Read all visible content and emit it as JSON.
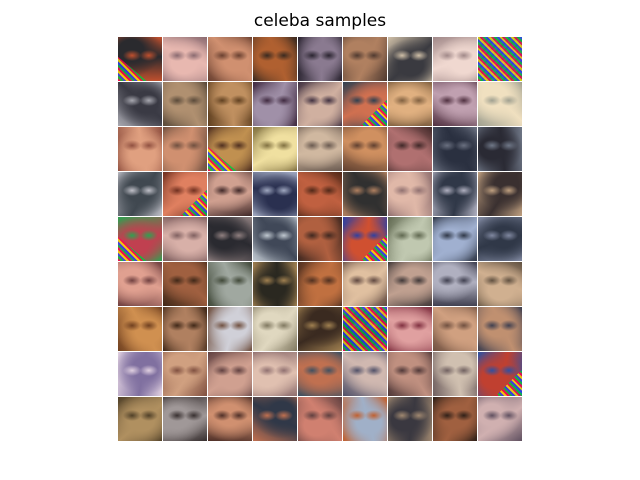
{
  "figure": {
    "title": "celeba samples"
  },
  "grid": {
    "rows": 9,
    "cols": 9,
    "tiles": [
      {
        "c1": "#2a2a2e",
        "c2": "#c0502e",
        "noise": "bl"
      },
      {
        "c1": "#e8b8b0",
        "c2": "#8a6a70",
        "noise": ""
      },
      {
        "c1": "#d09070",
        "c2": "#6a4030",
        "noise": ""
      },
      {
        "c1": "#b06030",
        "c2": "#3a2a20",
        "noise": ""
      },
      {
        "c1": "#8a7a90",
        "c2": "#2a2430",
        "noise": ""
      },
      {
        "c1": "#b08060",
        "c2": "#503a30",
        "noise": ""
      },
      {
        "c1": "#3a3a40",
        "c2": "#d0c0a8",
        "noise": ""
      },
      {
        "c1": "#f0d8d0",
        "c2": "#a08888",
        "noise": ""
      },
      {
        "c1": "#8040a0",
        "c2": "#30a050",
        "noise": "full"
      },
      {
        "c1": "#3a3a44",
        "c2": "#a8a8b0",
        "noise": ""
      },
      {
        "c1": "#b09070",
        "c2": "#5a4a3a",
        "noise": ""
      },
      {
        "c1": "#c09060",
        "c2": "#604020",
        "noise": ""
      },
      {
        "c1": "#a090a8",
        "c2": "#402a40",
        "noise": ""
      },
      {
        "c1": "#d0b0a0",
        "c2": "#403040",
        "noise": ""
      },
      {
        "c1": "#d07050",
        "c2": "#304050",
        "noise": "corner"
      },
      {
        "c1": "#e0b080",
        "c2": "#806040",
        "noise": ""
      },
      {
        "c1": "#c0a0b0",
        "c2": "#503040",
        "noise": ""
      },
      {
        "c1": "#f0e0c0",
        "c2": "#a0a090",
        "noise": ""
      },
      {
        "c1": "#e0a080",
        "c2": "#905040",
        "noise": ""
      },
      {
        "c1": "#d09070",
        "c2": "#705040",
        "noise": ""
      },
      {
        "c1": "#c09050",
        "c2": "#503020",
        "noise": "bl"
      },
      {
        "c1": "#f0e0a0",
        "c2": "#807040",
        "noise": ""
      },
      {
        "c1": "#d0b8a0",
        "c2": "#6a5a50",
        "noise": ""
      },
      {
        "c1": "#d09060",
        "c2": "#604030",
        "noise": ""
      },
      {
        "c1": "#b07070",
        "c2": "#402828",
        "noise": ""
      },
      {
        "c1": "#2a3040",
        "c2": "#6a7080",
        "noise": ""
      },
      {
        "c1": "#2a2a34",
        "c2": "#707888",
        "noise": ""
      },
      {
        "c1": "#404850",
        "c2": "#c0c0c8",
        "noise": ""
      },
      {
        "c1": "#e08060",
        "c2": "#703020",
        "noise": "corner"
      },
      {
        "c1": "#d0a090",
        "c2": "#402828",
        "noise": ""
      },
      {
        "c1": "#2a3050",
        "c2": "#a0a8c0",
        "noise": ""
      },
      {
        "c1": "#c06040",
        "c2": "#502818",
        "noise": ""
      },
      {
        "c1": "#303030",
        "c2": "#b08060",
        "noise": ""
      },
      {
        "c1": "#e0b8a8",
        "c2": "#907070",
        "noise": ""
      },
      {
        "c1": "#303848",
        "c2": "#b0b0c0",
        "noise": ""
      },
      {
        "c1": "#3a3030",
        "c2": "#c0a080",
        "noise": ""
      },
      {
        "c1": "#c04050",
        "c2": "#30a050",
        "noise": "bl"
      },
      {
        "c1": "#d8b0a8",
        "c2": "#806060",
        "noise": ""
      },
      {
        "c1": "#2a2a30",
        "c2": "#908080",
        "noise": ""
      },
      {
        "c1": "#404858",
        "c2": "#c0c8d0",
        "noise": ""
      },
      {
        "c1": "#b06040",
        "c2": "#402820",
        "noise": ""
      },
      {
        "c1": "#d05030",
        "c2": "#3040a0",
        "noise": "corner"
      },
      {
        "c1": "#c0c8b0",
        "c2": "#606850",
        "noise": ""
      },
      {
        "c1": "#a0b0d0",
        "c2": "#303848",
        "noise": ""
      },
      {
        "c1": "#303848",
        "c2": "#8088a0",
        "noise": ""
      },
      {
        "c1": "#e0a090",
        "c2": "#704040",
        "noise": ""
      },
      {
        "c1": "#a06040",
        "c2": "#402818",
        "noise": ""
      },
      {
        "c1": "#a0a8a0",
        "c2": "#404838",
        "noise": ""
      },
      {
        "c1": "#2a2820",
        "c2": "#a08050",
        "noise": ""
      },
      {
        "c1": "#c07040",
        "c2": "#503020",
        "noise": ""
      },
      {
        "c1": "#e0c0a0",
        "c2": "#604840",
        "noise": ""
      },
      {
        "c1": "#c0a090",
        "c2": "#403838",
        "noise": ""
      },
      {
        "c1": "#b0b0c0",
        "c2": "#404050",
        "noise": ""
      },
      {
        "c1": "#d0b090",
        "c2": "#605040",
        "noise": ""
      },
      {
        "c1": "#d09050",
        "c2": "#704020",
        "noise": ""
      },
      {
        "c1": "#b08060",
        "c2": "#402818",
        "noise": ""
      },
      {
        "c1": "#d0d0d8",
        "c2": "#705040",
        "noise": ""
      },
      {
        "c1": "#e0d8c0",
        "c2": "#807860",
        "noise": ""
      },
      {
        "c1": "#3a2a20",
        "c2": "#a08050",
        "noise": ""
      },
      {
        "c1": "#2a2a40",
        "c2": "#c040a0",
        "noise": "full"
      },
      {
        "c1": "#e0a0a0",
        "c2": "#803040",
        "noise": ""
      },
      {
        "c1": "#d0a080",
        "c2": "#705040",
        "noise": ""
      },
      {
        "c1": "#c09070",
        "c2": "#404050",
        "noise": ""
      },
      {
        "c1": "#8070a0",
        "c2": "#e0d0e0",
        "noise": ""
      },
      {
        "c1": "#d0a080",
        "c2": "#805040",
        "noise": ""
      },
      {
        "c1": "#d0a090",
        "c2": "#604040",
        "noise": ""
      },
      {
        "c1": "#e0c0b0",
        "c2": "#907070",
        "noise": ""
      },
      {
        "c1": "#c07050",
        "c2": "#405060",
        "noise": ""
      },
      {
        "c1": "#d0b8b0",
        "c2": "#505068",
        "noise": ""
      },
      {
        "c1": "#c09080",
        "c2": "#503838",
        "noise": ""
      },
      {
        "c1": "#d0c0b0",
        "c2": "#706060",
        "noise": ""
      },
      {
        "c1": "#c04030",
        "c2": "#3050a0",
        "noise": "corner"
      },
      {
        "c1": "#b09060",
        "c2": "#504028",
        "noise": ""
      },
      {
        "c1": "#a09898",
        "c2": "#383030",
        "noise": ""
      },
      {
        "c1": "#d09070",
        "c2": "#503028",
        "noise": ""
      },
      {
        "c1": "#303848",
        "c2": "#c07050",
        "noise": ""
      },
      {
        "c1": "#d08070",
        "c2": "#604040",
        "noise": ""
      },
      {
        "c1": "#a0b0c8",
        "c2": "#c06030",
        "noise": ""
      },
      {
        "c1": "#3a3840",
        "c2": "#a08870",
        "noise": ""
      },
      {
        "c1": "#a06040",
        "c2": "#302018",
        "noise": ""
      },
      {
        "c1": "#d0b0b0",
        "c2": "#605060",
        "noise": ""
      }
    ]
  }
}
